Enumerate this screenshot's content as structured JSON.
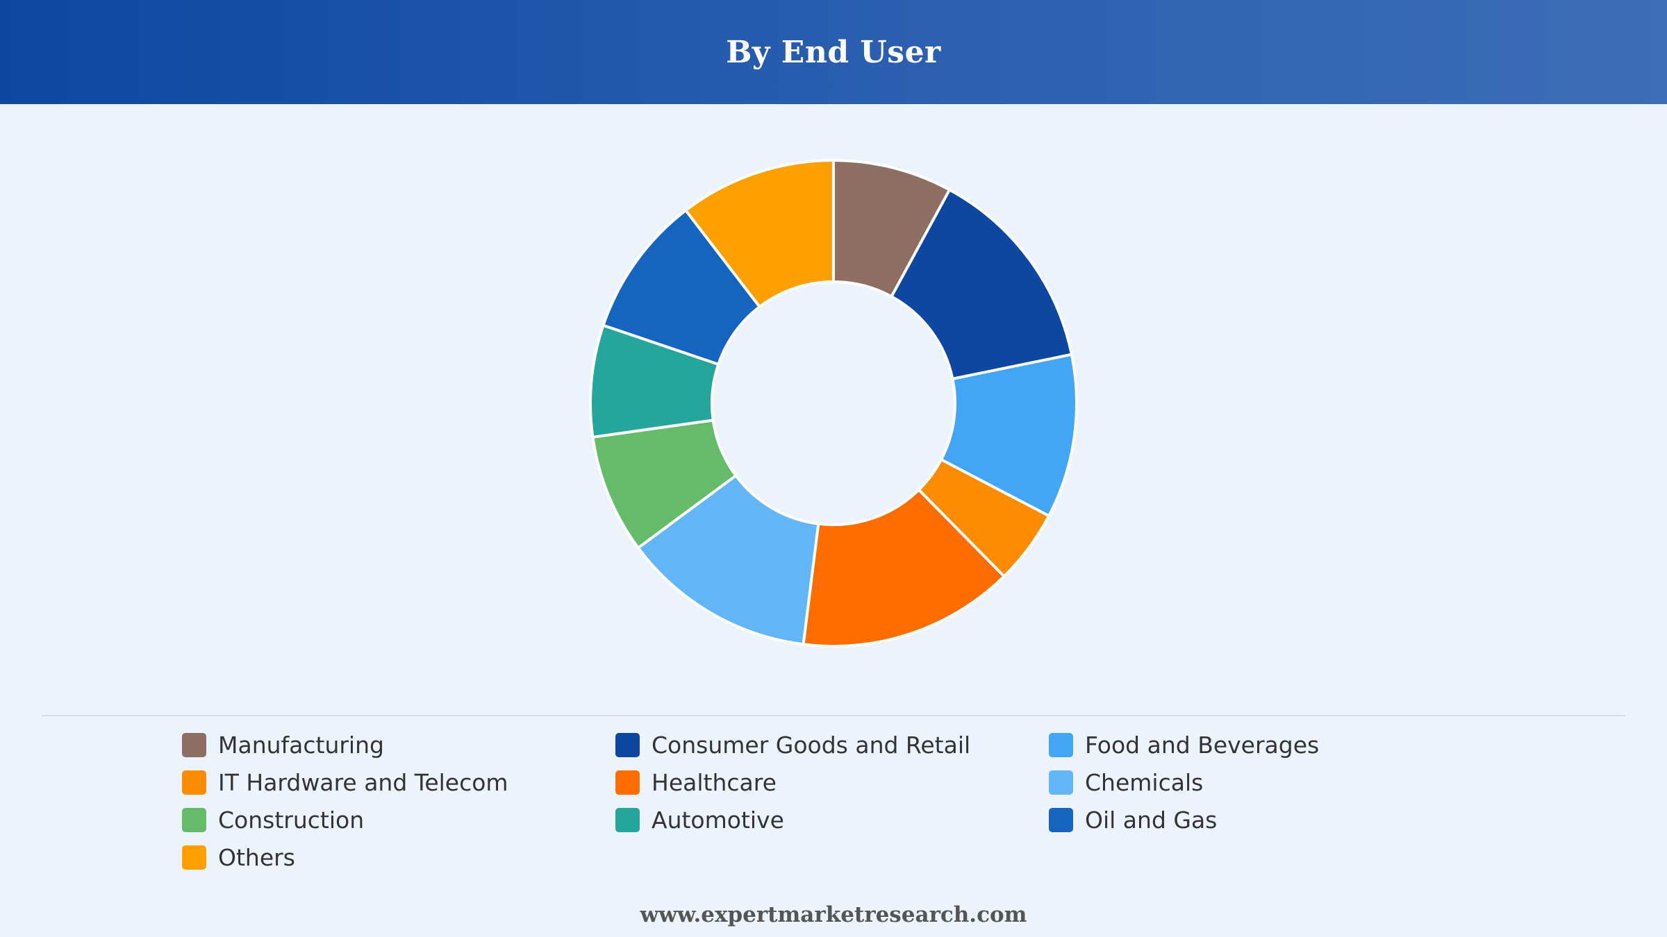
{
  "header": {
    "title": "By End User"
  },
  "chart_data": {
    "type": "pie",
    "donut": true,
    "title": "By End User",
    "legend_position": "bottom",
    "categories": [
      "Manufacturing",
      "Consumer Goods and Retail",
      "Food and Beverages",
      "IT Hardware and Telecom",
      "Healthcare",
      "Chemicals",
      "Construction",
      "Automotive",
      "Oil and Gas",
      "Others"
    ],
    "values": [
      8,
      14,
      11,
      5,
      14.5,
      13,
      8,
      7.5,
      9.5,
      10.5
    ],
    "colors": [
      "#8d6e63",
      "#0d47a1",
      "#42a5f5",
      "#fb8c00",
      "#ff6d00",
      "#64b5f6",
      "#66bb6a",
      "#26a69a",
      "#1565c0",
      "#ffa000"
    ]
  },
  "footer": {
    "source": "www.expertmarketresearch.com"
  }
}
